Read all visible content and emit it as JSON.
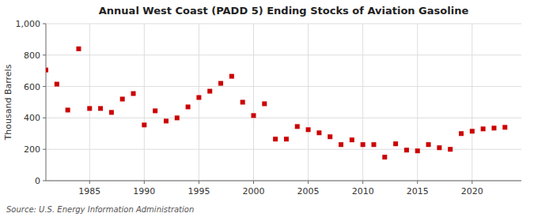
{
  "chart_data": {
    "type": "scatter",
    "title": "Annual West Coast (PADD 5) Ending Stocks of Aviation Gasoline",
    "y_label": "Thousand Barrels",
    "annotations": [
      "Source: U.S. Energy Information Administration"
    ],
    "x": [
      1981,
      1982,
      1983,
      1984,
      1985,
      1986,
      1987,
      1988,
      1989,
      1990,
      1991,
      1992,
      1993,
      1994,
      1995,
      1996,
      1997,
      1998,
      1999,
      2000,
      2001,
      2002,
      2003,
      2004,
      2005,
      2006,
      2007,
      2008,
      2009,
      2010,
      2011,
      2012,
      2013,
      2014,
      2015,
      2016,
      2017,
      2018,
      2019,
      2020,
      2021,
      2022,
      2023
    ],
    "values": [
      705,
      615,
      450,
      840,
      460,
      460,
      435,
      520,
      555,
      355,
      445,
      380,
      400,
      470,
      530,
      570,
      620,
      665,
      500,
      415,
      490,
      265,
      265,
      345,
      325,
      305,
      280,
      230,
      260,
      230,
      230,
      150,
      235,
      195,
      190,
      230,
      210,
      200,
      300,
      315,
      330,
      335,
      340
    ],
    "color": "#cc0000",
    "marker": "square",
    "xlim": [
      1981.0,
      2024.5
    ],
    "ylim": [
      0,
      1000
    ],
    "xticks": [
      1985,
      1990,
      1995,
      2000,
      2005,
      2010,
      2015,
      2020
    ],
    "yticks": [
      0,
      200,
      400,
      600,
      800,
      {
        "value": 1000,
        "label": "1,000"
      }
    ],
    "grid": true
  }
}
